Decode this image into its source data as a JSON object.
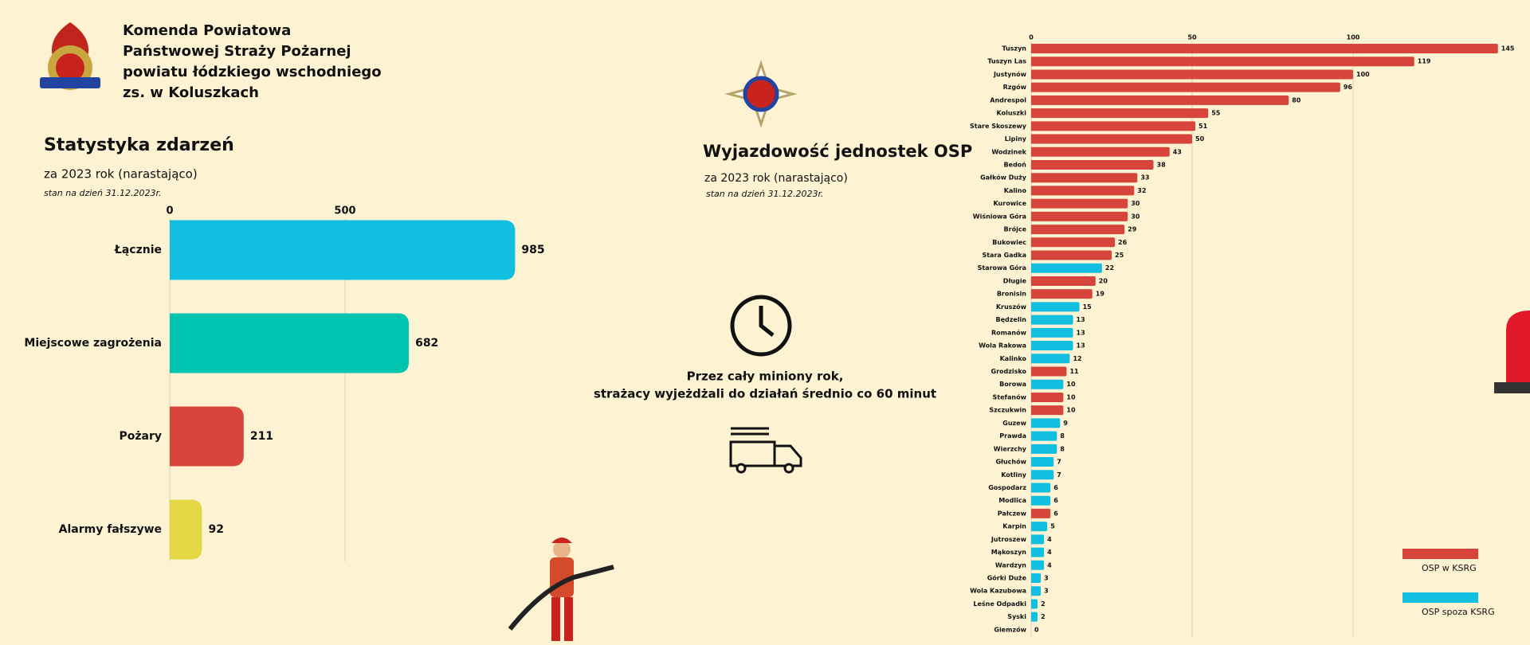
{
  "header": {
    "lines": [
      "Komenda Powiatowa",
      "Państwowej Straży Pożarnej",
      "powiatu łódzkiego wschodniego",
      "zs. w Koluszkach"
    ]
  },
  "middle": {
    "title": "Wyjazdowość jednostek OSP",
    "subtitle": "za 2023 rok (narastająco)",
    "note": "stan na dzień 31.12.2023r.",
    "info": [
      "Przez cały miniony rok,",
      "strażacy wyjeżdżali do działań średnio co  60 minut"
    ]
  },
  "chart_data": [
    {
      "type": "bar",
      "orientation": "horizontal",
      "title": "Statystyka zdarzeń",
      "subtitle": "za 2023 rok (narastająco)",
      "note": "stan na dzień 31.12.2023r.",
      "categories": [
        "Łącznie",
        "Miejscowe zagrożenia",
        "Pożary",
        "Alarmy fałszywe"
      ],
      "values": [
        985,
        682,
        211,
        92
      ],
      "colors": [
        "#12bfe0",
        "#00c4b0",
        "#d6443b",
        "#e3d843"
      ],
      "xlim": [
        0,
        1000
      ],
      "xticks": [
        0,
        500
      ],
      "grid": true
    },
    {
      "type": "bar",
      "orientation": "horizontal",
      "categories": [
        "Tuszyn",
        "Tuszyn Las",
        "Justynów",
        "Rzgów",
        "Andrespol",
        "Koluszki",
        "Stare Skoszewy",
        "Lipiny",
        "Wodzinek",
        "Bedoń",
        "Gałków Duży",
        "Kalino",
        "Kurowice",
        "Wiśniowa Góra",
        "Brójce",
        "Bukowiec",
        "Stara Gadka",
        "Starowa Góra",
        "Długie",
        "Bronisin",
        "Kruszów",
        "Będzelin",
        "Romanów",
        "Wola Rakowa",
        "Kalinko",
        "Grodzisko",
        "Borowa",
        "Stefanów",
        "Szczukwin",
        "Guzew",
        "Prawda",
        "Wierzchy",
        "Głuchów",
        "Kotliny",
        "Gospodarz",
        "Modlica",
        "Pałczew",
        "Karpin",
        "Jutroszew",
        "Mąkoszyn",
        "Wardzyn",
        "Górki Duże",
        "Wola Kazubowa",
        "Leśne Odpadki",
        "Syski",
        "Giemzów"
      ],
      "values": [
        145,
        119,
        100,
        96,
        80,
        55,
        51,
        50,
        43,
        38,
        33,
        32,
        30,
        30,
        29,
        26,
        25,
        22,
        20,
        19,
        15,
        13,
        13,
        13,
        12,
        11,
        10,
        10,
        10,
        9,
        8,
        8,
        7,
        7,
        6,
        6,
        6,
        5,
        4,
        4,
        4,
        3,
        3,
        2,
        2,
        0
      ],
      "colors": [
        "#d6443b",
        "#d6443b",
        "#d6443b",
        "#d6443b",
        "#d6443b",
        "#d6443b",
        "#d6443b",
        "#d6443b",
        "#d6443b",
        "#d6443b",
        "#d6443b",
        "#d6443b",
        "#d6443b",
        "#d6443b",
        "#d6443b",
        "#d6443b",
        "#d6443b",
        "#12bfe0",
        "#d6443b",
        "#d6443b",
        "#12bfe0",
        "#12bfe0",
        "#12bfe0",
        "#12bfe0",
        "#12bfe0",
        "#d6443b",
        "#12bfe0",
        "#d6443b",
        "#d6443b",
        "#12bfe0",
        "#12bfe0",
        "#12bfe0",
        "#12bfe0",
        "#12bfe0",
        "#12bfe0",
        "#12bfe0",
        "#d6443b",
        "#12bfe0",
        "#12bfe0",
        "#12bfe0",
        "#12bfe0",
        "#12bfe0",
        "#12bfe0",
        "#12bfe0",
        "#12bfe0",
        "#12bfe0"
      ],
      "legend": [
        {
          "name": "OSP w KSRG",
          "color": "#d6443b"
        },
        {
          "name": "OSP spoza KSRG",
          "color": "#12bfe0"
        }
      ],
      "xlim": [
        0,
        150
      ],
      "xticks": [
        0,
        50,
        100
      ],
      "grid": true
    }
  ]
}
